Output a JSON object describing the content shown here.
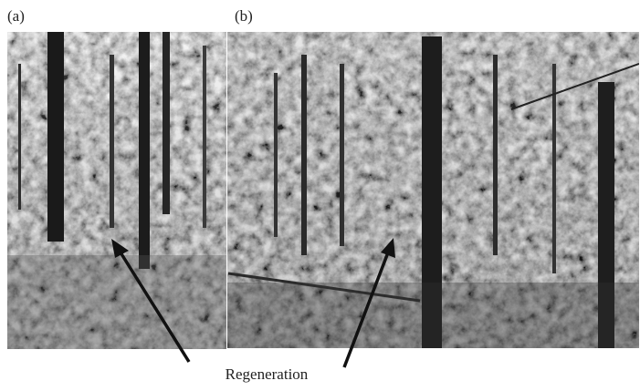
{
  "panels": [
    {
      "label": "(a)"
    },
    {
      "label": "(b)"
    }
  ],
  "annotation": "Regeneration"
}
